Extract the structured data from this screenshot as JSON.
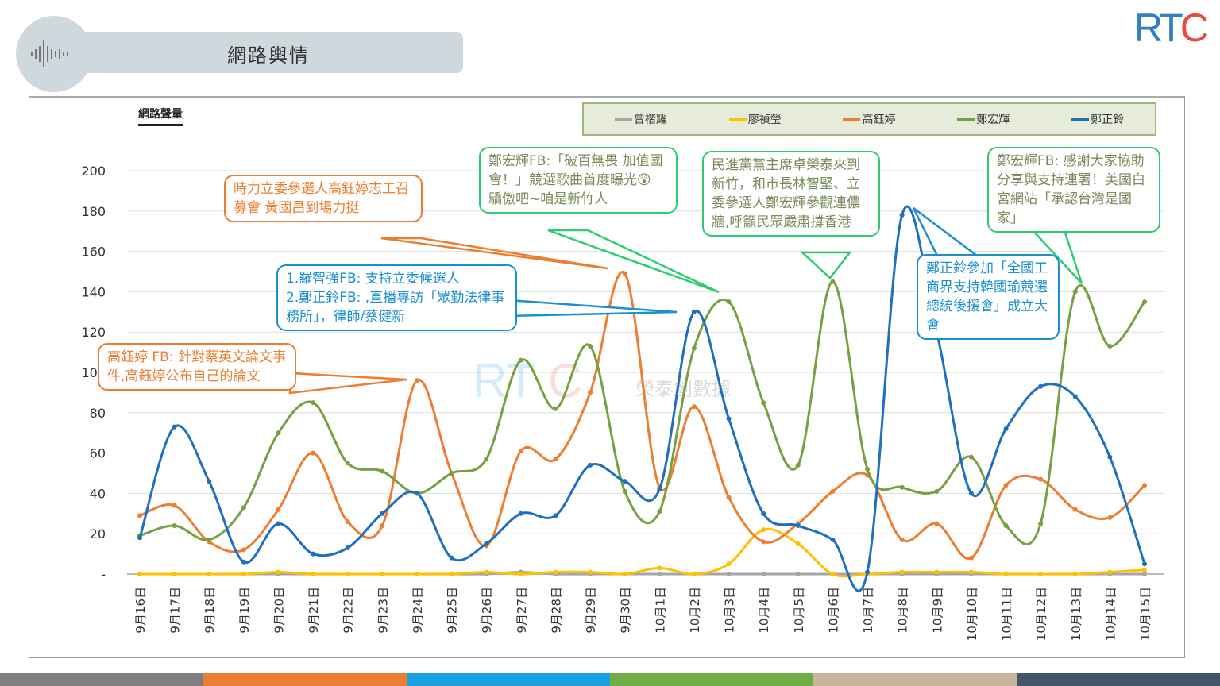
{
  "header": {
    "title": "網路輿情",
    "icon": "sound-wave-icon"
  },
  "logo": {
    "text": "RTC"
  },
  "watermark": {
    "text": "RTC 榮泰創數據"
  },
  "colors": {
    "gray": "#a5a5a5",
    "yellow": "#ffc000",
    "orange": "#ed7d31",
    "green": "#77a043",
    "blue": "#1f6fc0",
    "bottom_bar": [
      "#7f7f7f",
      "#ed7d31",
      "#1ba1e2",
      "#70ad47",
      "#c9b59a",
      "#44546a"
    ]
  },
  "chart_data": {
    "type": "line",
    "title": "網路聲量",
    "xlabel": "",
    "ylabel": "",
    "ylim": [
      0,
      200
    ],
    "yticks": [
      "-",
      "20",
      "40",
      "60",
      "80",
      "100",
      "120",
      "140",
      "160",
      "180",
      "200"
    ],
    "grid": true,
    "legend_position": "top-right",
    "categories": [
      "9月16日",
      "9月17日",
      "9月18日",
      "9月19日",
      "9月20日",
      "9月21日",
      "9月22日",
      "9月23日",
      "9月24日",
      "9月25日",
      "9月26日",
      "9月27日",
      "9月28日",
      "9月29日",
      "9月30日",
      "10月1日",
      "10月2日",
      "10月3日",
      "10月4日",
      "10月5日",
      "10月6日",
      "10月7日",
      "10月8日",
      "10月9日",
      "10月10日",
      "10月11日",
      "10月12日",
      "10月13日",
      "10月14日",
      "10月15日"
    ],
    "series": [
      {
        "name": "曾楷耀",
        "color": "#a5a5a5",
        "values": [
          0,
          0,
          0,
          0,
          0,
          0,
          0,
          0,
          0,
          0,
          0,
          1,
          0,
          0,
          0,
          0,
          0,
          0,
          0,
          0,
          0,
          0,
          0,
          0,
          0,
          0,
          0,
          0,
          0,
          0
        ]
      },
      {
        "name": "廖禎瑩",
        "color": "#ffc000",
        "values": [
          0,
          0,
          0,
          0,
          1,
          0,
          0,
          0,
          0,
          0,
          1,
          0,
          1,
          1,
          0,
          3,
          0,
          5,
          22,
          15,
          0,
          0,
          1,
          1,
          1,
          0,
          0,
          0,
          1,
          2
        ]
      },
      {
        "name": "高鈺婷",
        "color": "#ed7d31",
        "values": [
          29,
          34,
          16,
          12,
          32,
          60,
          26,
          24,
          96,
          50,
          14,
          61,
          57,
          90,
          149,
          43,
          83,
          38,
          16,
          25,
          41,
          49,
          17,
          25,
          8,
          44,
          47,
          32,
          28,
          44
        ]
      },
      {
        "name": "鄭宏輝",
        "color": "#77a043",
        "values": [
          19,
          24,
          17,
          33,
          70,
          85,
          55,
          51,
          40,
          50,
          57,
          106,
          82,
          113,
          41,
          31,
          112,
          135,
          85,
          54,
          145,
          52,
          43,
          41,
          58,
          24,
          25,
          140,
          113,
          135
        ]
      },
      {
        "name": "鄭正鈴",
        "color": "#1f6fc0",
        "values": [
          18,
          73,
          46,
          6,
          25,
          10,
          13,
          30,
          40,
          8,
          15,
          30,
          29,
          54,
          46,
          42,
          130,
          77,
          30,
          24,
          17,
          1,
          178,
          120,
          40,
          72,
          93,
          88,
          58,
          5
        ]
      }
    ]
  },
  "callouts": [
    {
      "text": "時力立委參選人高鈺婷志工召募會 黃國昌到場力挺",
      "color": "#ed7d31"
    },
    {
      "text": "鄭宏輝FB:「破百無畏 加值國會！」競選歌曲首度曝光😲 驕傲吧~咱是新竹人",
      "color": "#2ecc71"
    },
    {
      "text": "民進黨黨主席卓榮泰來到新竹，和市長林智堅、立委參選人鄭宏輝參觀連儂牆,呼籲民眾嚴肅撐香港",
      "color": "#2ecc71"
    },
    {
      "text": "鄭宏輝FB: 感謝大家協助分享與支持連署！美國白宮網站「承認台灣是國家」",
      "color": "#2ecc71"
    },
    {
      "text": "1.羅智強FB: 支持立委候選人\n2.鄭正鈴FB: ,直播專訪「眾勤法律事務所」，律師/蔡健新",
      "color": "#1b8fd0"
    },
    {
      "text": "鄭正鈴參加「全國工商界支持韓國瑜競選總統後援會」成立大會",
      "color": "#1b8fd0"
    },
    {
      "text": "高鈺婷 FB: 針對蔡英文論文事件,高鈺婷公布自己的論文",
      "color": "#ed7d31"
    }
  ]
}
